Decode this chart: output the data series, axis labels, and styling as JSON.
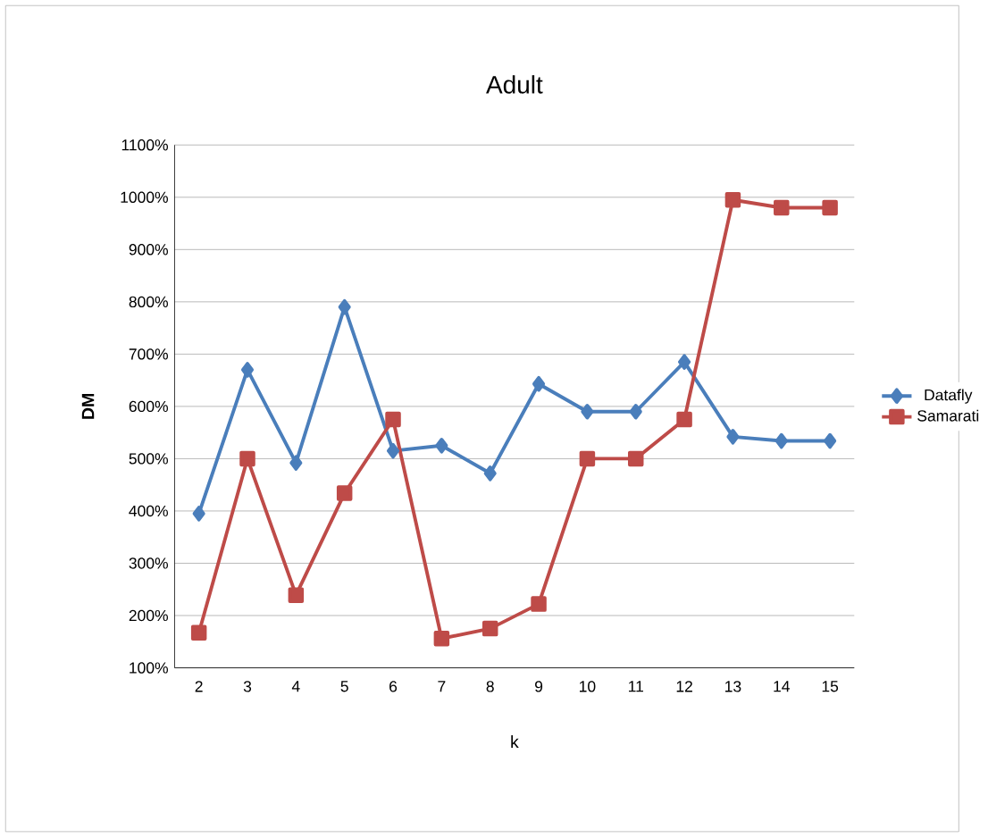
{
  "chart_data": {
    "type": "line",
    "title": "Adult",
    "xlabel": "k",
    "ylabel": "DM",
    "categories": [
      "2",
      "3",
      "4",
      "5",
      "6",
      "7",
      "8",
      "9",
      "10",
      "11",
      "12",
      "13",
      "14",
      "15"
    ],
    "series": [
      {
        "name": "Datafly",
        "color": "#4a7ebb",
        "marker": "diamond",
        "values": [
          395,
          670,
          492,
          790,
          515,
          525,
          472,
          643,
          590,
          590,
          685,
          542,
          534,
          534
        ]
      },
      {
        "name": "Samarati",
        "color": "#be4b48",
        "marker": "square",
        "values": [
          167,
          500,
          239,
          434,
          575,
          156,
          175,
          222,
          500,
          500,
          575,
          995,
          980,
          980
        ]
      }
    ],
    "ylim": [
      100,
      1100
    ],
    "yticks": [
      {
        "value": 100,
        "label": "100%"
      },
      {
        "value": 200,
        "label": "200%"
      },
      {
        "value": 300,
        "label": "300%"
      },
      {
        "value": 400,
        "label": "400%"
      },
      {
        "value": 500,
        "label": "500%"
      },
      {
        "value": 600,
        "label": "600%"
      },
      {
        "value": 700,
        "label": "700%"
      },
      {
        "value": 800,
        "label": "800%"
      },
      {
        "value": 900,
        "label": "900%"
      },
      {
        "value": 1000,
        "label": "1000%"
      },
      {
        "value": 1100,
        "label": "1100%"
      }
    ],
    "grid": "y",
    "legend": "right"
  }
}
